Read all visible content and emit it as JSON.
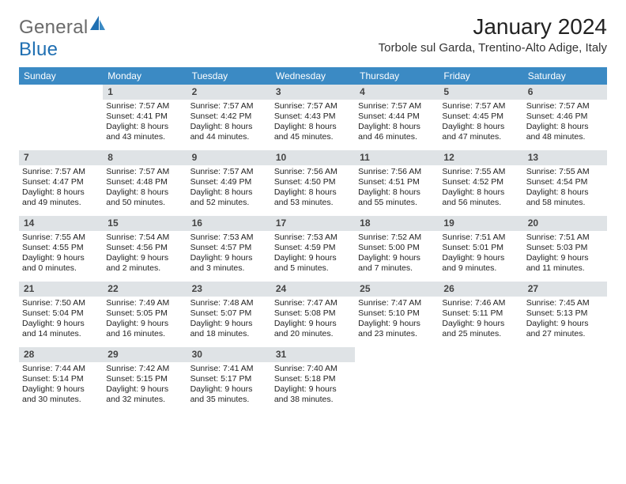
{
  "logo": {
    "word1": "General",
    "word2": "Blue"
  },
  "title": "January 2024",
  "subtitle": "Torbole sul Garda, Trentino-Alto Adige, Italy",
  "colors": {
    "header_bg": "#3b8ac4",
    "header_text": "#ffffff",
    "daynum_bg": "#dfe3e6",
    "daynum_text": "#444444",
    "body_text": "#222222",
    "logo_gray": "#6a6a6a",
    "logo_blue": "#1f6fb2",
    "page_bg": "#ffffff"
  },
  "days_of_week": [
    "Sunday",
    "Monday",
    "Tuesday",
    "Wednesday",
    "Thursday",
    "Friday",
    "Saturday"
  ],
  "weeks": [
    [
      {
        "empty": true
      },
      {
        "num": "1",
        "l1": "Sunrise: 7:57 AM",
        "l2": "Sunset: 4:41 PM",
        "l3": "Daylight: 8 hours",
        "l4": "and 43 minutes."
      },
      {
        "num": "2",
        "l1": "Sunrise: 7:57 AM",
        "l2": "Sunset: 4:42 PM",
        "l3": "Daylight: 8 hours",
        "l4": "and 44 minutes."
      },
      {
        "num": "3",
        "l1": "Sunrise: 7:57 AM",
        "l2": "Sunset: 4:43 PM",
        "l3": "Daylight: 8 hours",
        "l4": "and 45 minutes."
      },
      {
        "num": "4",
        "l1": "Sunrise: 7:57 AM",
        "l2": "Sunset: 4:44 PM",
        "l3": "Daylight: 8 hours",
        "l4": "and 46 minutes."
      },
      {
        "num": "5",
        "l1": "Sunrise: 7:57 AM",
        "l2": "Sunset: 4:45 PM",
        "l3": "Daylight: 8 hours",
        "l4": "and 47 minutes."
      },
      {
        "num": "6",
        "l1": "Sunrise: 7:57 AM",
        "l2": "Sunset: 4:46 PM",
        "l3": "Daylight: 8 hours",
        "l4": "and 48 minutes."
      }
    ],
    [
      {
        "num": "7",
        "l1": "Sunrise: 7:57 AM",
        "l2": "Sunset: 4:47 PM",
        "l3": "Daylight: 8 hours",
        "l4": "and 49 minutes."
      },
      {
        "num": "8",
        "l1": "Sunrise: 7:57 AM",
        "l2": "Sunset: 4:48 PM",
        "l3": "Daylight: 8 hours",
        "l4": "and 50 minutes."
      },
      {
        "num": "9",
        "l1": "Sunrise: 7:57 AM",
        "l2": "Sunset: 4:49 PM",
        "l3": "Daylight: 8 hours",
        "l4": "and 52 minutes."
      },
      {
        "num": "10",
        "l1": "Sunrise: 7:56 AM",
        "l2": "Sunset: 4:50 PM",
        "l3": "Daylight: 8 hours",
        "l4": "and 53 minutes."
      },
      {
        "num": "11",
        "l1": "Sunrise: 7:56 AM",
        "l2": "Sunset: 4:51 PM",
        "l3": "Daylight: 8 hours",
        "l4": "and 55 minutes."
      },
      {
        "num": "12",
        "l1": "Sunrise: 7:55 AM",
        "l2": "Sunset: 4:52 PM",
        "l3": "Daylight: 8 hours",
        "l4": "and 56 minutes."
      },
      {
        "num": "13",
        "l1": "Sunrise: 7:55 AM",
        "l2": "Sunset: 4:54 PM",
        "l3": "Daylight: 8 hours",
        "l4": "and 58 minutes."
      }
    ],
    [
      {
        "num": "14",
        "l1": "Sunrise: 7:55 AM",
        "l2": "Sunset: 4:55 PM",
        "l3": "Daylight: 9 hours",
        "l4": "and 0 minutes."
      },
      {
        "num": "15",
        "l1": "Sunrise: 7:54 AM",
        "l2": "Sunset: 4:56 PM",
        "l3": "Daylight: 9 hours",
        "l4": "and 2 minutes."
      },
      {
        "num": "16",
        "l1": "Sunrise: 7:53 AM",
        "l2": "Sunset: 4:57 PM",
        "l3": "Daylight: 9 hours",
        "l4": "and 3 minutes."
      },
      {
        "num": "17",
        "l1": "Sunrise: 7:53 AM",
        "l2": "Sunset: 4:59 PM",
        "l3": "Daylight: 9 hours",
        "l4": "and 5 minutes."
      },
      {
        "num": "18",
        "l1": "Sunrise: 7:52 AM",
        "l2": "Sunset: 5:00 PM",
        "l3": "Daylight: 9 hours",
        "l4": "and 7 minutes."
      },
      {
        "num": "19",
        "l1": "Sunrise: 7:51 AM",
        "l2": "Sunset: 5:01 PM",
        "l3": "Daylight: 9 hours",
        "l4": "and 9 minutes."
      },
      {
        "num": "20",
        "l1": "Sunrise: 7:51 AM",
        "l2": "Sunset: 5:03 PM",
        "l3": "Daylight: 9 hours",
        "l4": "and 11 minutes."
      }
    ],
    [
      {
        "num": "21",
        "l1": "Sunrise: 7:50 AM",
        "l2": "Sunset: 5:04 PM",
        "l3": "Daylight: 9 hours",
        "l4": "and 14 minutes."
      },
      {
        "num": "22",
        "l1": "Sunrise: 7:49 AM",
        "l2": "Sunset: 5:05 PM",
        "l3": "Daylight: 9 hours",
        "l4": "and 16 minutes."
      },
      {
        "num": "23",
        "l1": "Sunrise: 7:48 AM",
        "l2": "Sunset: 5:07 PM",
        "l3": "Daylight: 9 hours",
        "l4": "and 18 minutes."
      },
      {
        "num": "24",
        "l1": "Sunrise: 7:47 AM",
        "l2": "Sunset: 5:08 PM",
        "l3": "Daylight: 9 hours",
        "l4": "and 20 minutes."
      },
      {
        "num": "25",
        "l1": "Sunrise: 7:47 AM",
        "l2": "Sunset: 5:10 PM",
        "l3": "Daylight: 9 hours",
        "l4": "and 23 minutes."
      },
      {
        "num": "26",
        "l1": "Sunrise: 7:46 AM",
        "l2": "Sunset: 5:11 PM",
        "l3": "Daylight: 9 hours",
        "l4": "and 25 minutes."
      },
      {
        "num": "27",
        "l1": "Sunrise: 7:45 AM",
        "l2": "Sunset: 5:13 PM",
        "l3": "Daylight: 9 hours",
        "l4": "and 27 minutes."
      }
    ],
    [
      {
        "num": "28",
        "l1": "Sunrise: 7:44 AM",
        "l2": "Sunset: 5:14 PM",
        "l3": "Daylight: 9 hours",
        "l4": "and 30 minutes."
      },
      {
        "num": "29",
        "l1": "Sunrise: 7:42 AM",
        "l2": "Sunset: 5:15 PM",
        "l3": "Daylight: 9 hours",
        "l4": "and 32 minutes."
      },
      {
        "num": "30",
        "l1": "Sunrise: 7:41 AM",
        "l2": "Sunset: 5:17 PM",
        "l3": "Daylight: 9 hours",
        "l4": "and 35 minutes."
      },
      {
        "num": "31",
        "l1": "Sunrise: 7:40 AM",
        "l2": "Sunset: 5:18 PM",
        "l3": "Daylight: 9 hours",
        "l4": "and 38 minutes."
      },
      {
        "empty": true
      },
      {
        "empty": true
      },
      {
        "empty": true
      }
    ]
  ]
}
